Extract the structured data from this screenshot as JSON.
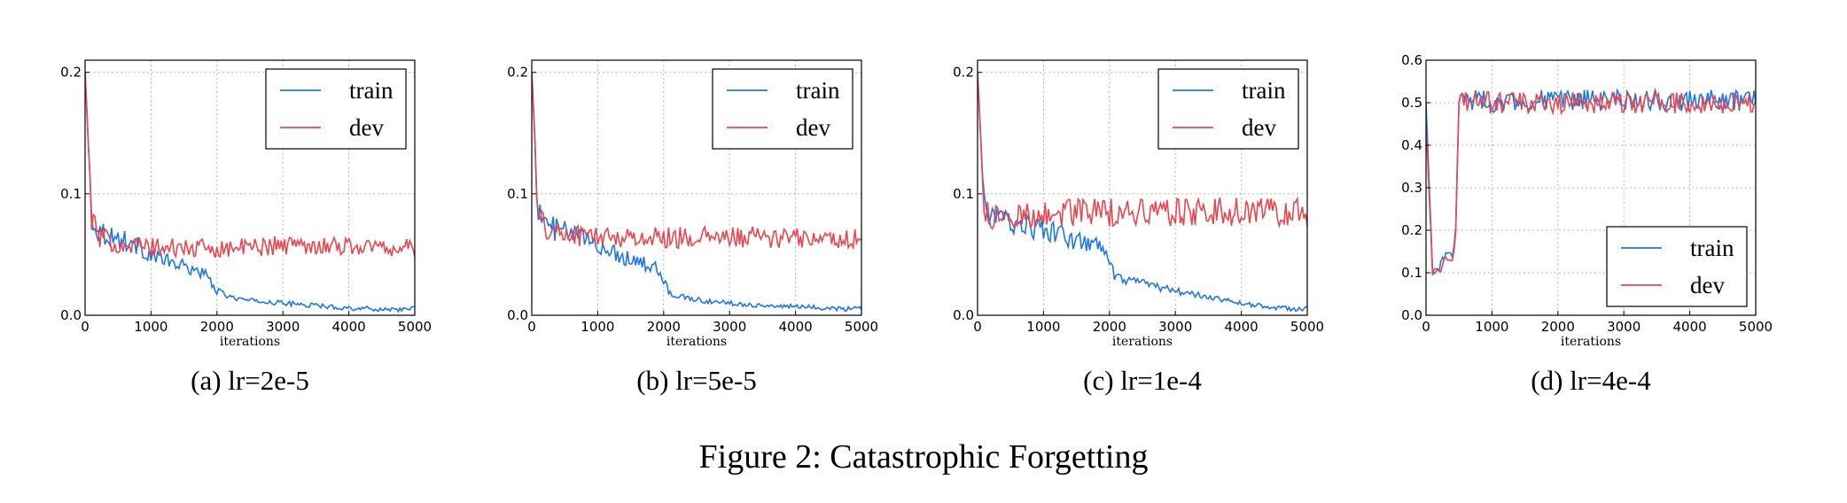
{
  "colors": {
    "train": "#1f77e4",
    "dev": "#e8474f"
  },
  "figure_caption": "Figure 2: Catastrophic Forgetting",
  "chart_data": [
    {
      "type": "line",
      "caption": "(a) lr=2e-5",
      "xlabel": "iterations",
      "xlim": [
        0,
        5000
      ],
      "ylim": [
        0,
        0.21
      ],
      "xticks": [
        0,
        1000,
        2000,
        3000,
        4000,
        5000
      ],
      "xtick_labels": [
        "0",
        "1000",
        "2000",
        "3000",
        "4000",
        "5000"
      ],
      "yticks": [
        0,
        0.1,
        0.2
      ],
      "ytick_labels": [
        "0.0",
        "0.1",
        "0.2"
      ],
      "grid": true,
      "legend_position": "top-right",
      "series": [
        {
          "name": "train",
          "x": [
            0,
            100,
            200,
            400,
            700,
            1000,
            1200,
            1500,
            1800,
            2000,
            2200,
            2500,
            3000,
            3500,
            4000,
            4500,
            5000
          ],
          "y": [
            0.2,
            0.08,
            0.07,
            0.065,
            0.06,
            0.05,
            0.045,
            0.04,
            0.035,
            0.02,
            0.015,
            0.012,
            0.01,
            0.008,
            0.006,
            0.005,
            0.005
          ]
        },
        {
          "name": "dev",
          "x": [
            0,
            100,
            200,
            400,
            700,
            1000,
            1500,
            2000,
            2500,
            3000,
            3500,
            4000,
            4500,
            5000
          ],
          "y": [
            0.2,
            0.08,
            0.065,
            0.06,
            0.058,
            0.056,
            0.055,
            0.055,
            0.056,
            0.058,
            0.058,
            0.057,
            0.056,
            0.055
          ]
        }
      ]
    },
    {
      "type": "line",
      "caption": "(b) lr=5e-5",
      "xlabel": "iterations",
      "xlim": [
        0,
        5000
      ],
      "ylim": [
        0,
        0.21
      ],
      "xticks": [
        0,
        1000,
        2000,
        3000,
        4000,
        5000
      ],
      "xtick_labels": [
        "0",
        "1000",
        "2000",
        "3000",
        "4000",
        "5000"
      ],
      "yticks": [
        0,
        0.1,
        0.2
      ],
      "ytick_labels": [
        "0.0",
        "0.1",
        "0.2"
      ],
      "grid": true,
      "legend_position": "top-right",
      "series": [
        {
          "name": "train",
          "x": [
            0,
            100,
            200,
            400,
            700,
            1000,
            1300,
            1600,
            1900,
            2100,
            2300,
            2600,
            3000,
            3500,
            4000,
            4500,
            5000
          ],
          "y": [
            0.2,
            0.085,
            0.075,
            0.07,
            0.065,
            0.058,
            0.05,
            0.045,
            0.038,
            0.018,
            0.015,
            0.012,
            0.01,
            0.008,
            0.007,
            0.006,
            0.005
          ]
        },
        {
          "name": "dev",
          "x": [
            0,
            100,
            200,
            400,
            700,
            1000,
            1500,
            2000,
            2500,
            3000,
            3500,
            4000,
            4500,
            5000
          ],
          "y": [
            0.2,
            0.08,
            0.072,
            0.068,
            0.066,
            0.065,
            0.064,
            0.064,
            0.064,
            0.064,
            0.064,
            0.063,
            0.063,
            0.063
          ]
        }
      ]
    },
    {
      "type": "line",
      "caption": "(c) lr=1e-4",
      "xlabel": "iterations",
      "xlim": [
        0,
        5000
      ],
      "ylim": [
        0,
        0.21
      ],
      "xticks": [
        0,
        1000,
        2000,
        3000,
        4000,
        5000
      ],
      "xtick_labels": [
        "0",
        "1000",
        "2000",
        "3000",
        "4000",
        "5000"
      ],
      "yticks": [
        0,
        0.1,
        0.2
      ],
      "ytick_labels": [
        "0.0",
        "0.1",
        "0.2"
      ],
      "grid": true,
      "legend_position": "top-right",
      "series": [
        {
          "name": "train",
          "x": [
            0,
            100,
            200,
            400,
            700,
            1000,
            1300,
            1600,
            1900,
            2100,
            2300,
            2600,
            3000,
            3500,
            4000,
            4500,
            5000
          ],
          "y": [
            0.2,
            0.09,
            0.082,
            0.078,
            0.075,
            0.07,
            0.065,
            0.06,
            0.055,
            0.03,
            0.028,
            0.025,
            0.02,
            0.015,
            0.01,
            0.006,
            0.005
          ]
        },
        {
          "name": "dev",
          "x": [
            0,
            100,
            200,
            400,
            700,
            1000,
            1500,
            2000,
            2500,
            3000,
            3500,
            4000,
            4500,
            5000
          ],
          "y": [
            0.2,
            0.085,
            0.08,
            0.08,
            0.082,
            0.084,
            0.085,
            0.085,
            0.085,
            0.085,
            0.085,
            0.085,
            0.085,
            0.085
          ]
        }
      ]
    },
    {
      "type": "line",
      "caption": "(d) lr=4e-4",
      "xlabel": "iterations",
      "xlim": [
        0,
        5000
      ],
      "ylim": [
        0,
        0.6
      ],
      "xticks": [
        0,
        1000,
        2000,
        3000,
        4000,
        5000
      ],
      "xtick_labels": [
        "0",
        "1000",
        "2000",
        "3000",
        "4000",
        "5000"
      ],
      "yticks": [
        0,
        0.1,
        0.2,
        0.3,
        0.4,
        0.5,
        0.6
      ],
      "ytick_labels": [
        "0.0",
        "0.1",
        "0.2",
        "0.3",
        "0.4",
        "0.5",
        "0.6"
      ],
      "grid": true,
      "legend_position": "bottom-right",
      "series": [
        {
          "name": "train",
          "x": [
            0,
            100,
            200,
            300,
            400,
            450,
            500,
            600,
            1000,
            1500,
            2000,
            2500,
            3000,
            3500,
            4000,
            4500,
            5000
          ],
          "y": [
            0.5,
            0.1,
            0.11,
            0.15,
            0.14,
            0.2,
            0.5,
            0.51,
            0.5,
            0.505,
            0.505,
            0.505,
            0.505,
            0.505,
            0.505,
            0.505,
            0.505
          ]
        },
        {
          "name": "dev",
          "x": [
            0,
            100,
            200,
            300,
            400,
            450,
            500,
            600,
            1000,
            1500,
            2000,
            2500,
            3000,
            3500,
            4000,
            4500,
            5000
          ],
          "y": [
            0.45,
            0.1,
            0.1,
            0.14,
            0.13,
            0.19,
            0.5,
            0.5,
            0.5,
            0.5,
            0.5,
            0.5,
            0.5,
            0.5,
            0.5,
            0.5,
            0.5
          ]
        }
      ]
    }
  ]
}
